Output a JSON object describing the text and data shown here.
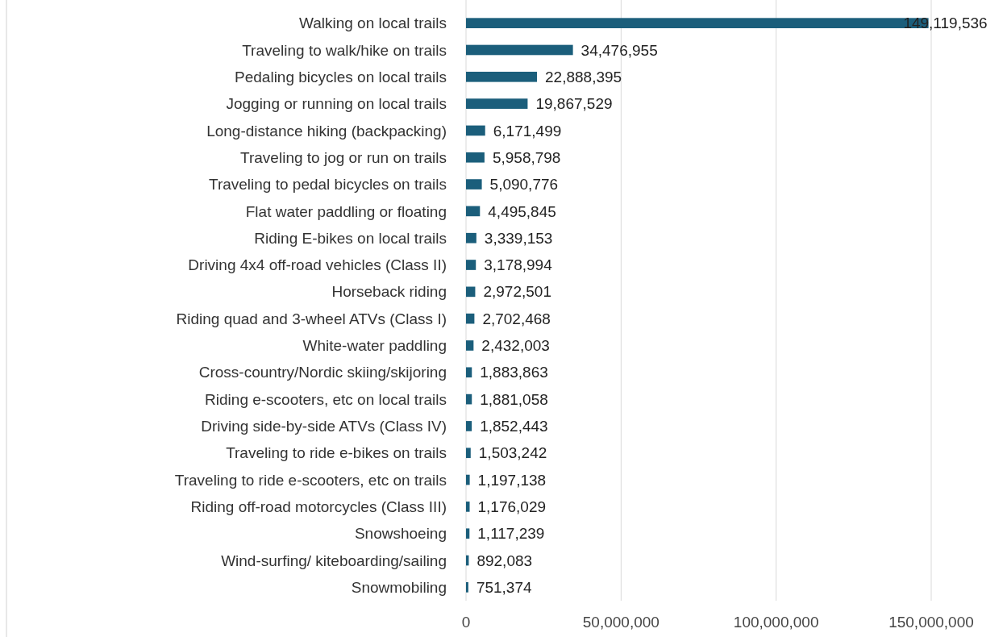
{
  "chart_data": {
    "type": "bar",
    "orientation": "horizontal",
    "categories": [
      "Walking on local trails",
      "Traveling to walk/hike on trails",
      "Pedaling bicycles on local trails",
      "Jogging or running on local trails",
      "Long-distance hiking (backpacking)",
      "Traveling to jog or run on trails",
      "Traveling to pedal bicycles on trails",
      "Flat water paddling or floating",
      "Riding E-bikes on local trails",
      "Driving 4x4 off-road vehicles (Class II)",
      "Horseback riding",
      "Riding quad and 3-wheel ATVs (Class I)",
      "White-water paddling",
      "Cross-country/Nordic skiing/skijoring",
      "Riding e-scooters, etc on local trails",
      "Driving side-by-side ATVs (Class IV)",
      "Traveling to ride e-bikes on trails",
      "Traveling to ride e-scooters, etc on trails",
      "Riding off-road motorcycles (Class III)",
      "Snowshoeing",
      "Wind-surfing/ kiteboarding/sailing",
      "Snowmobiling"
    ],
    "values": [
      149119536,
      34476955,
      22888395,
      19867529,
      6171499,
      5958798,
      5090776,
      4495845,
      3339153,
      3178994,
      2972501,
      2702468,
      2432003,
      1883863,
      1881058,
      1852443,
      1503242,
      1197138,
      1176029,
      1117239,
      892083,
      751374
    ],
    "value_labels": [
      "149,119,536",
      "34,476,955",
      "22,888,395",
      "19,867,529",
      "6,171,499",
      "5,958,798",
      "5,090,776",
      "4,495,845",
      "3,339,153",
      "3,178,994",
      "2,972,501",
      "2,702,468",
      "2,432,003",
      "1,883,863",
      "1,881,058",
      "1,852,443",
      "1,503,242",
      "1,197,138",
      "1,176,029",
      "1,117,239",
      "892,083",
      "751,374"
    ],
    "color": "#1b5e7b",
    "grid": "x",
    "xlim": [
      0,
      150000000
    ],
    "xticks": [
      {
        "value": 0,
        "label": "0"
      },
      {
        "value": 50000000,
        "label": "50,000,000"
      },
      {
        "value": 100000000,
        "label": "100,000,000"
      },
      {
        "value": 150000000,
        "label": "150,000,000"
      }
    ]
  }
}
